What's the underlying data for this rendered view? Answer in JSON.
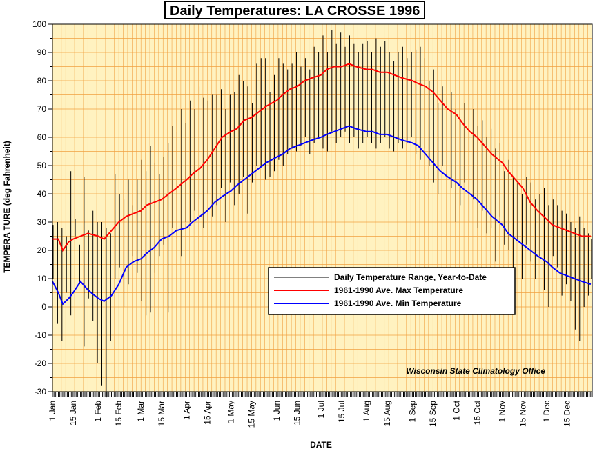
{
  "chart_data": {
    "type": "line",
    "title": "Daily Temperatures: LA CROSSE 1996",
    "xlabel": "DATE",
    "ylabel": "TEMPERA TURE (deg Fahrenheit)",
    "ylim": [
      -30,
      100
    ],
    "yticks": [
      -30,
      -20,
      -10,
      0,
      10,
      20,
      30,
      40,
      50,
      60,
      70,
      80,
      90,
      100
    ],
    "x_range": [
      "1996-01-01",
      "1996-12-31"
    ],
    "x_ticks": [
      {
        "date": "1996-01-01",
        "label": "1 Jan"
      },
      {
        "date": "1996-01-15",
        "label": "15 Jan"
      },
      {
        "date": "1996-02-01",
        "label": "1 Feb"
      },
      {
        "date": "1996-02-15",
        "label": "15 Feb"
      },
      {
        "date": "1996-03-01",
        "label": "1 Mar"
      },
      {
        "date": "1996-03-15",
        "label": "15 Mar"
      },
      {
        "date": "1996-04-01",
        "label": "1 Apr"
      },
      {
        "date": "1996-04-15",
        "label": "15 Apr"
      },
      {
        "date": "1996-05-01",
        "label": "1 May"
      },
      {
        "date": "1996-05-15",
        "label": "15 May"
      },
      {
        "date": "1996-06-01",
        "label": "1 Jun"
      },
      {
        "date": "1996-06-15",
        "label": "15 Jun"
      },
      {
        "date": "1996-07-01",
        "label": "1 Jul"
      },
      {
        "date": "1996-07-15",
        "label": "15 Jul"
      },
      {
        "date": "1996-08-01",
        "label": "1 Aug"
      },
      {
        "date": "1996-08-15",
        "label": "15 Aug"
      },
      {
        "date": "1996-09-01",
        "label": "1 Sep"
      },
      {
        "date": "1996-09-15",
        "label": "15 Sep"
      },
      {
        "date": "1996-10-01",
        "label": "1 Oct"
      },
      {
        "date": "1996-10-15",
        "label": "15 Oct"
      },
      {
        "date": "1996-11-01",
        "label": "1 Nov"
      },
      {
        "date": "1996-11-15",
        "label": "15 Nov"
      },
      {
        "date": "1996-12-01",
        "label": "1 Dec"
      },
      {
        "date": "1996-12-15",
        "label": "15 Dec"
      }
    ],
    "grid": true,
    "legend_position": "center-right",
    "annotation": "Wisconsin State Climatology Office",
    "colors": {
      "background": "#fff2c0",
      "grid": "#f0a040",
      "range": "#000000",
      "max": "#ff0000",
      "min": "#0000ff"
    },
    "series": [
      {
        "name": "1961-1990 Ave. Max Temperature",
        "kind": "line",
        "x": [
          "1996-01-01",
          "1996-01-05",
          "1996-01-08",
          "1996-01-12",
          "1996-01-15",
          "1996-01-20",
          "1996-01-25",
          "1996-02-01",
          "1996-02-05",
          "1996-02-10",
          "1996-02-15",
          "1996-02-20",
          "1996-02-25",
          "1996-03-01",
          "1996-03-05",
          "1996-03-10",
          "1996-03-15",
          "1996-03-20",
          "1996-03-25",
          "1996-04-01",
          "1996-04-05",
          "1996-04-10",
          "1996-04-15",
          "1996-04-20",
          "1996-04-25",
          "1996-05-01",
          "1996-05-05",
          "1996-05-10",
          "1996-05-15",
          "1996-05-20",
          "1996-05-25",
          "1996-06-01",
          "1996-06-05",
          "1996-06-10",
          "1996-06-15",
          "1996-06-20",
          "1996-06-25",
          "1996-07-01",
          "1996-07-05",
          "1996-07-10",
          "1996-07-15",
          "1996-07-20",
          "1996-07-25",
          "1996-08-01",
          "1996-08-05",
          "1996-08-10",
          "1996-08-15",
          "1996-08-20",
          "1996-08-25",
          "1996-09-01",
          "1996-09-05",
          "1996-09-10",
          "1996-09-15",
          "1996-09-20",
          "1996-09-25",
          "1996-10-01",
          "1996-10-05",
          "1996-10-10",
          "1996-10-15",
          "1996-10-20",
          "1996-10-25",
          "1996-11-01",
          "1996-11-05",
          "1996-11-10",
          "1996-11-15",
          "1996-11-20",
          "1996-11-25",
          "1996-12-01",
          "1996-12-05",
          "1996-12-10",
          "1996-12-15",
          "1996-12-20",
          "1996-12-25",
          "1996-12-31"
        ],
        "y": [
          24,
          24,
          20,
          23,
          24,
          25,
          26,
          25,
          24,
          27,
          30,
          32,
          33,
          34,
          36,
          37,
          38,
          40,
          42,
          45,
          47,
          49,
          52,
          56,
          60,
          62,
          63,
          66,
          67,
          69,
          71,
          73,
          75,
          77,
          78,
          80,
          81,
          82,
          84,
          85,
          85,
          86,
          85,
          84,
          84,
          83,
          83,
          82,
          81,
          80,
          79,
          78,
          76,
          73,
          70,
          68,
          65,
          62,
          60,
          57,
          54,
          51,
          48,
          45,
          42,
          37,
          34,
          31,
          29,
          28,
          27,
          26,
          25,
          25
        ]
      },
      {
        "name": "1961-1990 Ave. Min Temperature",
        "kind": "line",
        "x": [
          "1996-01-01",
          "1996-01-05",
          "1996-01-08",
          "1996-01-12",
          "1996-01-15",
          "1996-01-20",
          "1996-01-25",
          "1996-02-01",
          "1996-02-05",
          "1996-02-10",
          "1996-02-15",
          "1996-02-20",
          "1996-02-25",
          "1996-03-01",
          "1996-03-05",
          "1996-03-10",
          "1996-03-15",
          "1996-03-20",
          "1996-03-25",
          "1996-04-01",
          "1996-04-05",
          "1996-04-10",
          "1996-04-15",
          "1996-04-20",
          "1996-04-25",
          "1996-05-01",
          "1996-05-05",
          "1996-05-10",
          "1996-05-15",
          "1996-05-20",
          "1996-05-25",
          "1996-06-01",
          "1996-06-05",
          "1996-06-10",
          "1996-06-15",
          "1996-06-20",
          "1996-06-25",
          "1996-07-01",
          "1996-07-05",
          "1996-07-10",
          "1996-07-15",
          "1996-07-20",
          "1996-07-25",
          "1996-08-01",
          "1996-08-05",
          "1996-08-10",
          "1996-08-15",
          "1996-08-20",
          "1996-08-25",
          "1996-09-01",
          "1996-09-05",
          "1996-09-10",
          "1996-09-15",
          "1996-09-20",
          "1996-09-25",
          "1996-10-01",
          "1996-10-05",
          "1996-10-10",
          "1996-10-15",
          "1996-10-20",
          "1996-10-25",
          "1996-11-01",
          "1996-11-05",
          "1996-11-10",
          "1996-11-15",
          "1996-11-20",
          "1996-11-25",
          "1996-12-01",
          "1996-12-05",
          "1996-12-10",
          "1996-12-15",
          "1996-12-20",
          "1996-12-25",
          "1996-12-31"
        ],
        "y": [
          9,
          5,
          1,
          3,
          5,
          9,
          6,
          3,
          2,
          4,
          8,
          14,
          16,
          17,
          19,
          21,
          24,
          25,
          27,
          28,
          30,
          32,
          34,
          37,
          39,
          41,
          43,
          45,
          47,
          49,
          51,
          53,
          54,
          56,
          57,
          58,
          59,
          60,
          61,
          62,
          63,
          64,
          63,
          62,
          62,
          61,
          61,
          60,
          59,
          58,
          57,
          54,
          51,
          48,
          46,
          44,
          42,
          40,
          38,
          35,
          32,
          29,
          26,
          24,
          22,
          20,
          18,
          16,
          14,
          12,
          11,
          10,
          9,
          8
        ]
      },
      {
        "name": "Daily Temperature Range, Year-to-Date",
        "kind": "range",
        "x": [
          "1996-01-01",
          "1996-01-04",
          "1996-01-07",
          "1996-01-10",
          "1996-01-13",
          "1996-01-16",
          "1996-01-19",
          "1996-01-22",
          "1996-01-25",
          "1996-01-28",
          "1996-01-31",
          "1996-02-03",
          "1996-02-06",
          "1996-02-09",
          "1996-02-12",
          "1996-02-15",
          "1996-02-18",
          "1996-02-21",
          "1996-02-24",
          "1996-02-27",
          "1996-03-01",
          "1996-03-04",
          "1996-03-07",
          "1996-03-10",
          "1996-03-13",
          "1996-03-16",
          "1996-03-19",
          "1996-03-22",
          "1996-03-25",
          "1996-03-28",
          "1996-03-31",
          "1996-04-03",
          "1996-04-06",
          "1996-04-09",
          "1996-04-12",
          "1996-04-15",
          "1996-04-18",
          "1996-04-21",
          "1996-04-24",
          "1996-04-27",
          "1996-04-30",
          "1996-05-03",
          "1996-05-06",
          "1996-05-09",
          "1996-05-12",
          "1996-05-15",
          "1996-05-18",
          "1996-05-21",
          "1996-05-24",
          "1996-05-27",
          "1996-05-30",
          "1996-06-02",
          "1996-06-05",
          "1996-06-08",
          "1996-06-11",
          "1996-06-14",
          "1996-06-17",
          "1996-06-20",
          "1996-06-23",
          "1996-06-26",
          "1996-06-29",
          "1996-07-02",
          "1996-07-05",
          "1996-07-08",
          "1996-07-11",
          "1996-07-14",
          "1996-07-17",
          "1996-07-20",
          "1996-07-23",
          "1996-07-26",
          "1996-07-29",
          "1996-08-01",
          "1996-08-04",
          "1996-08-07",
          "1996-08-10",
          "1996-08-13",
          "1996-08-16",
          "1996-08-19",
          "1996-08-22",
          "1996-08-25",
          "1996-08-28",
          "1996-08-31",
          "1996-09-03",
          "1996-09-06",
          "1996-09-09",
          "1996-09-12",
          "1996-09-15",
          "1996-09-18",
          "1996-09-21",
          "1996-09-24",
          "1996-09-27",
          "1996-09-30",
          "1996-10-03",
          "1996-10-06",
          "1996-10-09",
          "1996-10-12",
          "1996-10-15",
          "1996-10-18",
          "1996-10-21",
          "1996-10-24",
          "1996-10-27",
          "1996-10-30",
          "1996-11-02",
          "1996-11-05",
          "1996-11-08",
          "1996-11-11",
          "1996-11-14",
          "1996-11-17",
          "1996-11-20",
          "1996-11-23",
          "1996-11-26",
          "1996-11-29",
          "1996-12-02",
          "1996-12-05",
          "1996-12-08",
          "1996-12-11",
          "1996-12-14",
          "1996-12-17",
          "1996-12-20",
          "1996-12-23",
          "1996-12-26",
          "1996-12-29",
          "1996-12-31"
        ],
        "low": [
          10,
          -6,
          -12,
          5,
          -3,
          25,
          8,
          -14,
          3,
          -5,
          -20,
          -28,
          -32,
          -12,
          10,
          14,
          0,
          8,
          18,
          12,
          2,
          -3,
          -2,
          12,
          18,
          22,
          -2,
          28,
          24,
          18,
          30,
          30,
          34,
          38,
          28,
          40,
          32,
          36,
          42,
          30,
          44,
          36,
          40,
          46,
          33,
          44,
          50,
          50,
          45,
          46,
          48,
          52,
          50,
          54,
          56,
          55,
          57,
          60,
          54,
          58,
          60,
          56,
          55,
          62,
          58,
          60,
          62,
          58,
          60,
          56,
          58,
          60,
          58,
          56,
          58,
          60,
          56,
          55,
          58,
          56,
          58,
          60,
          54,
          52,
          56,
          50,
          44,
          40,
          50,
          46,
          42,
          30,
          36,
          44,
          30,
          38,
          28,
          34,
          26,
          28,
          16,
          32,
          22,
          20,
          8,
          24,
          10,
          22,
          16,
          10,
          18,
          6,
          0,
          18,
          14,
          4,
          8,
          2,
          -8,
          -12,
          0,
          4,
          10
        ],
        "high": [
          29,
          30,
          28,
          25,
          48,
          31,
          22,
          46,
          27,
          34,
          30,
          30,
          28,
          26,
          47,
          40,
          38,
          45,
          36,
          45,
          52,
          48,
          57,
          51,
          47,
          53,
          58,
          64,
          62,
          70,
          65,
          73,
          70,
          78,
          74,
          73,
          75,
          75,
          77,
          70,
          75,
          76,
          82,
          80,
          78,
          72,
          86,
          88,
          88,
          76,
          82,
          88,
          86,
          84,
          86,
          90,
          85,
          88,
          84,
          92,
          90,
          96,
          90,
          98,
          93,
          97,
          92,
          96,
          93,
          90,
          93,
          94,
          90,
          95,
          92,
          94,
          90,
          87,
          90,
          92,
          88,
          90,
          91,
          92,
          88,
          80,
          84,
          72,
          78,
          74,
          76,
          70,
          66,
          72,
          75,
          70,
          64,
          66,
          60,
          63,
          56,
          58,
          48,
          52,
          46,
          44,
          40,
          46,
          44,
          38,
          40,
          42,
          36,
          38,
          36,
          34,
          33,
          30,
          28,
          32,
          28,
          26,
          24
        ]
      }
    ]
  }
}
